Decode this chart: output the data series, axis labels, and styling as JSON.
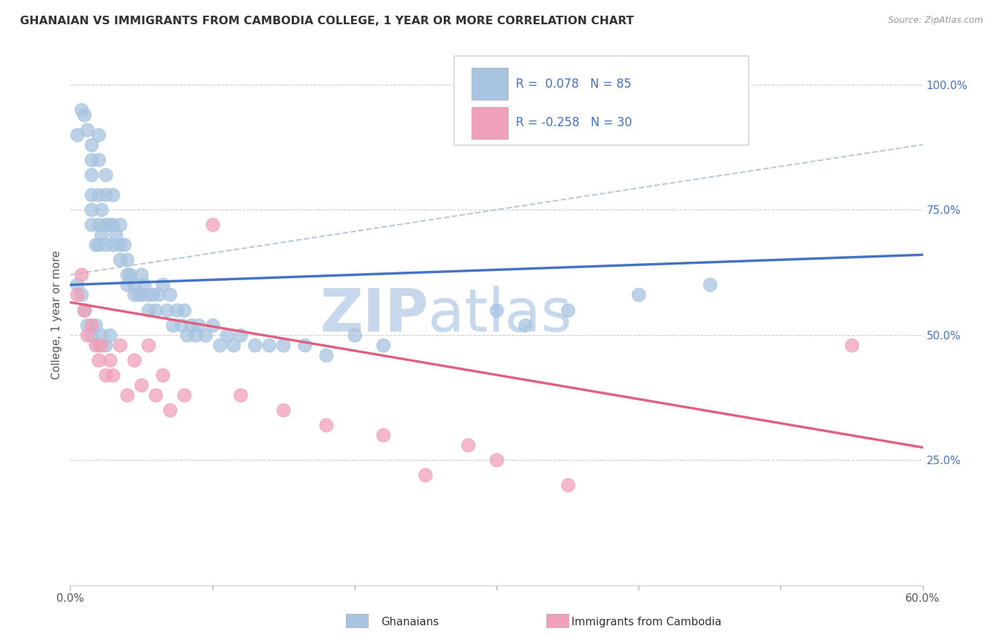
{
  "title": "GHANAIAN VS IMMIGRANTS FROM CAMBODIA COLLEGE, 1 YEAR OR MORE CORRELATION CHART",
  "ylabel": "College, 1 year or more",
  "source_text": "Source: ZipAtlas.com",
  "legend_label1": "Ghanaians",
  "legend_label2": "Immigrants from Cambodia",
  "R1": 0.078,
  "N1": 85,
  "R2": -0.258,
  "N2": 30,
  "xlim": [
    0.0,
    0.6
  ],
  "ylim": [
    0.0,
    1.08
  ],
  "xtick_values": [
    0.0,
    0.1,
    0.2,
    0.3,
    0.4,
    0.5,
    0.6
  ],
  "xtick_labels_show": [
    "0.0%",
    "",
    "",
    "",
    "",
    "",
    "60.0%"
  ],
  "ytick_values": [
    0.25,
    0.5,
    0.75,
    1.0
  ],
  "ytick_labels": [
    "25.0%",
    "50.0%",
    "75.0%",
    "100.0%"
  ],
  "color_blue": "#a8c4e0",
  "color_pink": "#f0a0b8",
  "color_blue_line": "#4472c4",
  "color_pink_line": "#e06080",
  "color_dashed": "#b8c8d8",
  "watermark_zip": "ZIP",
  "watermark_atlas": "atlas",
  "watermark_color": "#c8d8ec",
  "grid_color": "#cccccc",
  "blue_x": [
    0.005,
    0.008,
    0.01,
    0.012,
    0.015,
    0.015,
    0.015,
    0.015,
    0.015,
    0.015,
    0.018,
    0.02,
    0.02,
    0.02,
    0.02,
    0.02,
    0.022,
    0.022,
    0.025,
    0.025,
    0.025,
    0.025,
    0.028,
    0.03,
    0.03,
    0.03,
    0.032,
    0.035,
    0.035,
    0.035,
    0.038,
    0.04,
    0.04,
    0.04,
    0.042,
    0.045,
    0.045,
    0.048,
    0.05,
    0.05,
    0.052,
    0.055,
    0.055,
    0.058,
    0.06,
    0.062,
    0.065,
    0.068,
    0.07,
    0.072,
    0.075,
    0.078,
    0.08,
    0.082,
    0.085,
    0.088,
    0.09,
    0.095,
    0.1,
    0.105,
    0.11,
    0.115,
    0.12,
    0.13,
    0.14,
    0.15,
    0.165,
    0.18,
    0.2,
    0.22,
    0.005,
    0.008,
    0.01,
    0.012,
    0.015,
    0.018,
    0.02,
    0.022,
    0.025,
    0.028,
    0.3,
    0.32,
    0.35,
    0.4,
    0.45
  ],
  "blue_y": [
    0.9,
    0.95,
    0.94,
    0.91,
    0.88,
    0.85,
    0.82,
    0.78,
    0.75,
    0.72,
    0.68,
    0.9,
    0.85,
    0.78,
    0.72,
    0.68,
    0.75,
    0.7,
    0.82,
    0.78,
    0.72,
    0.68,
    0.72,
    0.78,
    0.72,
    0.68,
    0.7,
    0.72,
    0.68,
    0.65,
    0.68,
    0.65,
    0.62,
    0.6,
    0.62,
    0.6,
    0.58,
    0.58,
    0.62,
    0.58,
    0.6,
    0.58,
    0.55,
    0.58,
    0.55,
    0.58,
    0.6,
    0.55,
    0.58,
    0.52,
    0.55,
    0.52,
    0.55,
    0.5,
    0.52,
    0.5,
    0.52,
    0.5,
    0.52,
    0.48,
    0.5,
    0.48,
    0.5,
    0.48,
    0.48,
    0.48,
    0.48,
    0.46,
    0.5,
    0.48,
    0.6,
    0.58,
    0.55,
    0.52,
    0.5,
    0.52,
    0.48,
    0.5,
    0.48,
    0.5,
    0.55,
    0.52,
    0.55,
    0.58,
    0.6
  ],
  "pink_x": [
    0.005,
    0.008,
    0.01,
    0.012,
    0.015,
    0.018,
    0.02,
    0.022,
    0.025,
    0.028,
    0.03,
    0.035,
    0.04,
    0.045,
    0.05,
    0.055,
    0.06,
    0.065,
    0.07,
    0.08,
    0.1,
    0.12,
    0.15,
    0.18,
    0.22,
    0.25,
    0.28,
    0.3,
    0.35,
    0.55
  ],
  "pink_y": [
    0.58,
    0.62,
    0.55,
    0.5,
    0.52,
    0.48,
    0.45,
    0.48,
    0.42,
    0.45,
    0.42,
    0.48,
    0.38,
    0.45,
    0.4,
    0.48,
    0.38,
    0.42,
    0.35,
    0.38,
    0.72,
    0.38,
    0.35,
    0.32,
    0.3,
    0.22,
    0.28,
    0.25,
    0.2,
    0.48
  ],
  "blue_line_x0": 0.0,
  "blue_line_x1": 0.6,
  "blue_line_y0": 0.6,
  "blue_line_y1": 0.66,
  "pink_line_x0": 0.0,
  "pink_line_x1": 0.6,
  "pink_line_y0": 0.565,
  "pink_line_y1": 0.275,
  "dash_line_x0": 0.0,
  "dash_line_x1": 0.6,
  "dash_line_y0": 0.62,
  "dash_line_y1": 0.88
}
